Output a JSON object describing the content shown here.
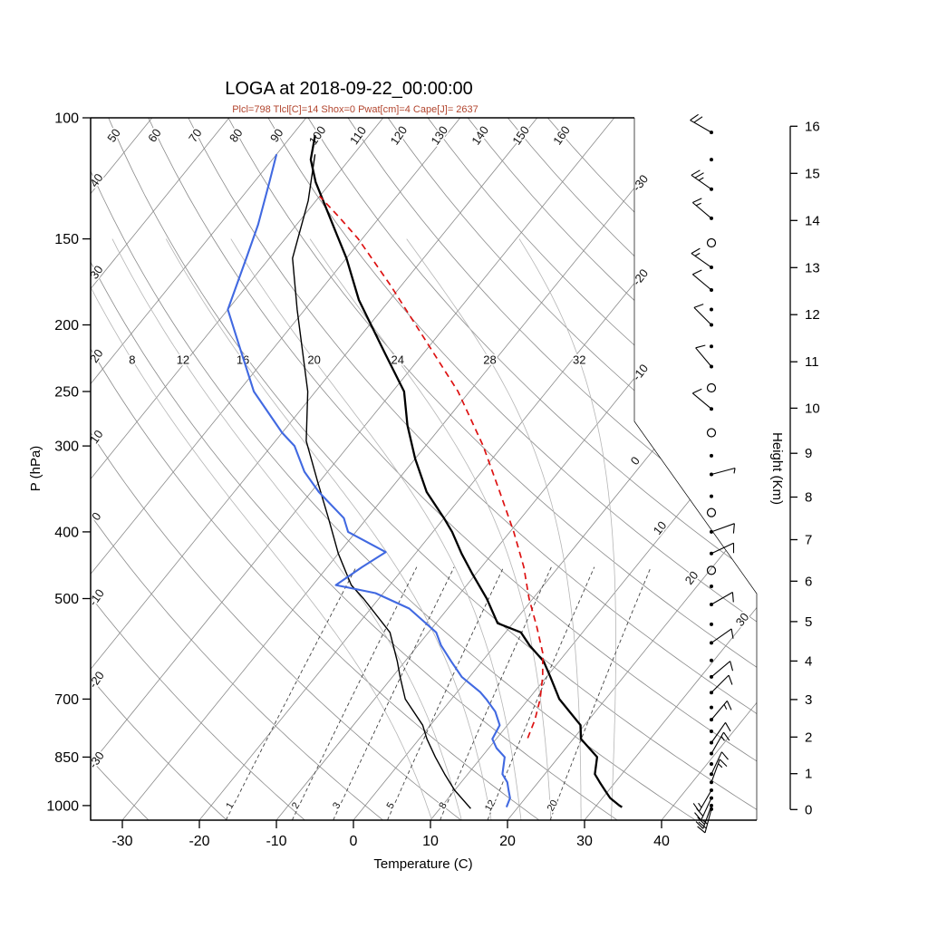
{
  "title": "LOGA at 2018-09-22_00:00:00",
  "subtitle": "Plcl=798 Tlcl[C]=14 Shox=0 Pwat[cm]=4 Cape[J]= 2637",
  "colors": {
    "temperature": "#000000",
    "dewpoint": "#4169e1",
    "wet_bulb": "#000000",
    "parcel": "#dd1111",
    "subtitle": "#b2452e",
    "grid": "#8a8a8a",
    "moist": "#b5b5b5",
    "mixing": "#444444"
  },
  "chart_data": {
    "type": "skewt",
    "xlabel": "Temperature (C)",
    "ylabel_left": "P (hPa)",
    "ylabel_right": "Height (Km)",
    "pressure_range": [
      100,
      1050
    ],
    "temperature_range": [
      -30,
      40
    ],
    "pressure_ticks": [
      100,
      150,
      200,
      250,
      300,
      400,
      500,
      700,
      850,
      1000
    ],
    "temperature_ticks": [
      -30,
      -20,
      -10,
      0,
      10,
      20,
      30,
      40
    ],
    "height_ticks": [
      0,
      1,
      2,
      3,
      4,
      5,
      6,
      7,
      8,
      9,
      10,
      11,
      12,
      13,
      14,
      15,
      16
    ],
    "isotherm_labels": [
      -30,
      -20,
      -10,
      0,
      10,
      20,
      30
    ],
    "dry_adiabat_values": [
      -30,
      -20,
      -10,
      0,
      10,
      20,
      30,
      40,
      50,
      60,
      70,
      80,
      90,
      100,
      110,
      120,
      130,
      140,
      150,
      160
    ],
    "moist_adiabat_values": [
      8,
      12,
      16,
      20,
      24,
      28,
      32
    ],
    "mixing_ratio_values": [
      1,
      2,
      3,
      5,
      8,
      12,
      20
    ],
    "series": {
      "temperature": [
        [
          1005,
          33.5
        ],
        [
          1000,
          33
        ],
        [
          975,
          31
        ],
        [
          950,
          29.5
        ],
        [
          925,
          28
        ],
        [
          900,
          26.5
        ],
        [
          850,
          25
        ],
        [
          800,
          21
        ],
        [
          764,
          19.5
        ],
        [
          700,
          14
        ],
        [
          650,
          10.5
        ],
        [
          617,
          8
        ],
        [
          585,
          4.5
        ],
        [
          560,
          2
        ],
        [
          543,
          -2
        ],
        [
          500,
          -6
        ],
        [
          460,
          -10.5
        ],
        [
          430,
          -14
        ],
        [
          400,
          -17.5
        ],
        [
          382,
          -20
        ],
        [
          350,
          -25
        ],
        [
          313,
          -30
        ],
        [
          280,
          -34.5
        ],
        [
          250,
          -38.5
        ],
        [
          220,
          -45
        ],
        [
          184,
          -54
        ],
        [
          160,
          -60
        ],
        [
          147,
          -64
        ],
        [
          135,
          -68
        ],
        [
          124,
          -72
        ],
        [
          115,
          -75
        ],
        [
          106,
          -77
        ]
      ],
      "dewpoint": [
        [
          1005,
          18.5
        ],
        [
          975,
          18
        ],
        [
          950,
          17
        ],
        [
          925,
          16
        ],
        [
          900,
          14.5
        ],
        [
          850,
          13
        ],
        [
          825,
          11
        ],
        [
          800,
          9.5
        ],
        [
          764,
          9
        ],
        [
          730,
          7
        ],
        [
          700,
          4.5
        ],
        [
          684,
          3
        ],
        [
          650,
          -1
        ],
        [
          617,
          -4
        ],
        [
          585,
          -7
        ],
        [
          560,
          -9
        ],
        [
          517,
          -15
        ],
        [
          491,
          -21
        ],
        [
          478,
          -27
        ],
        [
          450,
          -25.5
        ],
        [
          428,
          -24
        ],
        [
          400,
          -31
        ],
        [
          382,
          -33
        ],
        [
          350,
          -39
        ],
        [
          327,
          -43
        ],
        [
          300,
          -47
        ],
        [
          287,
          -50
        ],
        [
          250,
          -58
        ],
        [
          218,
          -64
        ],
        [
          190,
          -70
        ],
        [
          160,
          -73
        ],
        [
          143,
          -75
        ],
        [
          124,
          -78
        ],
        [
          113,
          -80
        ]
      ],
      "wet_bulb": [
        [
          1010,
          14
        ],
        [
          950,
          10
        ],
        [
          900,
          7
        ],
        [
          850,
          4
        ],
        [
          800,
          1
        ],
        [
          764,
          -1
        ],
        [
          700,
          -6
        ],
        [
          650,
          -9
        ],
        [
          617,
          -11
        ],
        [
          560,
          -15
        ],
        [
          500,
          -22
        ],
        [
          478,
          -25
        ],
        [
          430,
          -30
        ],
        [
          382,
          -35
        ],
        [
          340,
          -40
        ],
        [
          295,
          -46
        ],
        [
          250,
          -51
        ],
        [
          224,
          -55
        ],
        [
          190,
          -61
        ],
        [
          160,
          -67
        ],
        [
          132,
          -71
        ],
        [
          113,
          -75
        ]
      ],
      "parcel": [
        [
          798,
          14
        ],
        [
          750,
          13
        ],
        [
          700,
          11.5
        ],
        [
          650,
          9.5
        ],
        [
          600,
          7
        ],
        [
          550,
          3.5
        ],
        [
          500,
          -0.5
        ],
        [
          450,
          -4.5
        ],
        [
          400,
          -9.5
        ],
        [
          350,
          -15.5
        ],
        [
          300,
          -22.5
        ],
        [
          250,
          -31.5
        ],
        [
          200,
          -44
        ],
        [
          175,
          -51.5
        ],
        [
          150,
          -60.5
        ],
        [
          140,
          -65
        ],
        [
          130,
          -70
        ]
      ]
    },
    "winds": [
      [
        105,
        300,
        20
      ],
      [
        115,
        null,
        null
      ],
      [
        127,
        305,
        25
      ],
      [
        140,
        310,
        15
      ],
      [
        152,
        0,
        0
      ],
      [
        165,
        305,
        15
      ],
      [
        178,
        310,
        10
      ],
      [
        190,
        null,
        null
      ],
      [
        200,
        315,
        10
      ],
      [
        215,
        null,
        null
      ],
      [
        230,
        320,
        10
      ],
      [
        247,
        0,
        0
      ],
      [
        265,
        310,
        10
      ],
      [
        287,
        0,
        0
      ],
      [
        310,
        null,
        null
      ],
      [
        330,
        75,
        5
      ],
      [
        355,
        null,
        null
      ],
      [
        375,
        0,
        0
      ],
      [
        400,
        70,
        10
      ],
      [
        430,
        65,
        10
      ],
      [
        455,
        0,
        0
      ],
      [
        480,
        null,
        null
      ],
      [
        510,
        60,
        10
      ],
      [
        545,
        null,
        null
      ],
      [
        580,
        55,
        10
      ],
      [
        615,
        null,
        null
      ],
      [
        650,
        50,
        10
      ],
      [
        685,
        45,
        10
      ],
      [
        720,
        null,
        null
      ],
      [
        750,
        40,
        15
      ],
      [
        780,
        null,
        null
      ],
      [
        810,
        35,
        10
      ],
      [
        840,
        30,
        15
      ],
      [
        870,
        null,
        null
      ],
      [
        900,
        25,
        10
      ],
      [
        925,
        20,
        15
      ],
      [
        950,
        210,
        15
      ],
      [
        975,
        205,
        20
      ],
      [
        1000,
        200,
        20
      ],
      [
        1012,
        195,
        25
      ]
    ]
  }
}
